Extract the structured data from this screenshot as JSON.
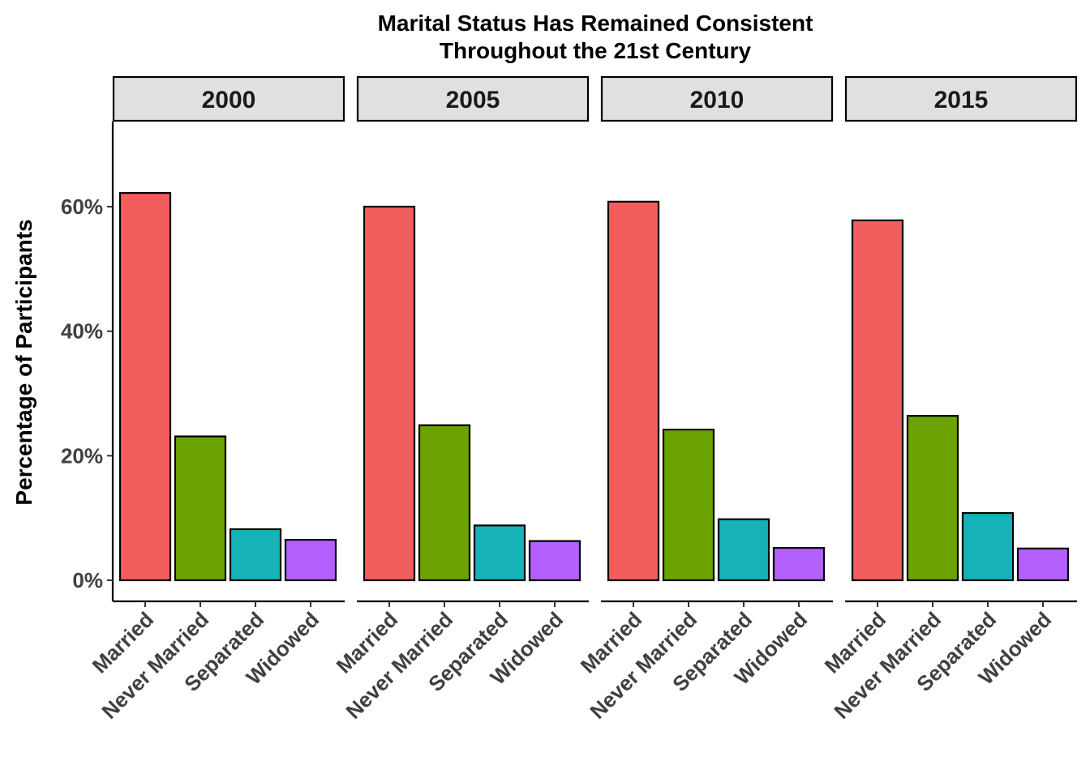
{
  "chart_data": {
    "type": "bar",
    "title": [
      "Marital Status Has Remained Consistent",
      "Throughout the 21st Century"
    ],
    "ylabel": "Percentage of Participants",
    "xlabel": "",
    "ylim": [
      0,
      0.73
    ],
    "y_ticks": [
      0,
      0.2,
      0.4,
      0.6
    ],
    "y_tick_labels": [
      "0%",
      "20%",
      "40%",
      "60%"
    ],
    "categories": [
      "Married",
      "Never Married",
      "Separated",
      "Widowed"
    ],
    "colors": [
      "#F25D5D",
      "#6BA303",
      "#15B3B8",
      "#B460FF"
    ],
    "grid": false,
    "legend": "none",
    "facets": [
      {
        "label": "2000",
        "values": [
          0.622,
          0.231,
          0.082,
          0.065
        ]
      },
      {
        "label": "2005",
        "values": [
          0.6,
          0.249,
          0.088,
          0.063
        ]
      },
      {
        "label": "2010",
        "values": [
          0.608,
          0.242,
          0.098,
          0.052
        ]
      },
      {
        "label": "2015",
        "values": [
          0.578,
          0.264,
          0.108,
          0.051
        ]
      }
    ]
  }
}
